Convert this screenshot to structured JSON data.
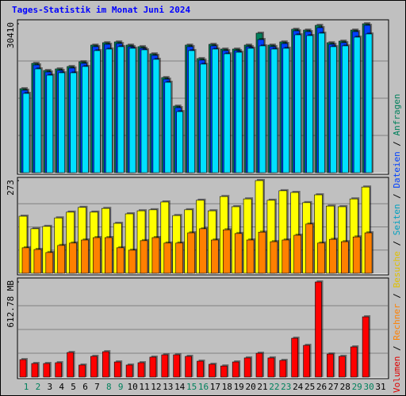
{
  "title": "Tages-Statistik im Monat Juni 2024",
  "legend_separator": " / ",
  "chart_data": [
    {
      "type": "bar",
      "ylim": [
        0,
        30410
      ],
      "yticks": [
        30410
      ],
      "grid": true,
      "series": [
        {
          "name": "Anfragen",
          "color": "#00805c",
          "values": [
            17150,
            22330,
            20870,
            21190,
            21680,
            22650,
            26050,
            26540,
            26700,
            26050,
            25730,
            24270,
            19420,
            13590,
            26050,
            23300,
            26210,
            25240,
            25240,
            26050,
            28480,
            26050,
            26700,
            29290,
            29120,
            30090,
            26540,
            26860,
            29120,
            30410,
            null
          ]
        },
        {
          "name": "Dateien",
          "color": "#0040ff",
          "values": [
            16830,
            22000,
            20550,
            20870,
            21360,
            22330,
            25730,
            26210,
            26370,
            25730,
            25400,
            23950,
            19090,
            13270,
            25730,
            22980,
            25890,
            24920,
            24920,
            25730,
            27180,
            25730,
            26370,
            28960,
            28800,
            29610,
            26210,
            26540,
            28800,
            30090,
            null
          ]
        },
        {
          "name": "Seiten",
          "color": "#00e0ff",
          "values": [
            16180,
            21190,
            19900,
            20390,
            20390,
            21680,
            24920,
            25240,
            25730,
            25400,
            25080,
            23140,
            18450,
            12460,
            24920,
            22170,
            25240,
            24270,
            24590,
            25400,
            25890,
            25240,
            25400,
            28150,
            27990,
            28480,
            25730,
            25890,
            27670,
            28320,
            null
          ]
        }
      ]
    },
    {
      "type": "bar",
      "ylim": [
        0,
        273
      ],
      "yticks": [
        273
      ],
      "grid": true,
      "series": [
        {
          "name": "Besuche",
          "color": "#ffff00",
          "values": [
            168,
            131,
            138,
            163,
            180,
            194,
            180,
            191,
            147,
            175,
            184,
            187,
            210,
            170,
            187,
            215,
            184,
            226,
            196,
            219,
            273,
            215,
            243,
            238,
            208,
            231,
            198,
            196,
            219,
            254,
            null
          ]
        },
        {
          "name": "Rechner",
          "color": "#ff8000",
          "values": [
            75,
            70,
            61,
            82,
            89,
            98,
            105,
            105,
            75,
            68,
            96,
            105,
            89,
            89,
            119,
            131,
            98,
            128,
            117,
            98,
            121,
            93,
            98,
            112,
            145,
            89,
            100,
            93,
            107,
            119,
            null
          ]
        }
      ]
    },
    {
      "type": "bar",
      "ylim": [
        0,
        612.78
      ],
      "yticks": [
        {
          "value": 612.78,
          "label": "612.78 MB"
        }
      ],
      "grid": true,
      "categories": [
        "1",
        "2",
        "3",
        "4",
        "5",
        "6",
        "7",
        "8",
        "9",
        "10",
        "11",
        "12",
        "13",
        "14",
        "15",
        "16",
        "17",
        "18",
        "19",
        "20",
        "21",
        "22",
        "23",
        "24",
        "25",
        "26",
        "27",
        "28",
        "29",
        "30",
        "31"
      ],
      "category_colors": [
        "#00805c",
        "#00805c",
        "#000000",
        "#000000",
        "#000000",
        "#000000",
        "#000000",
        "#00805c",
        "#00805c",
        "#000000",
        "#000000",
        "#000000",
        "#000000",
        "#000000",
        "#00805c",
        "#00805c",
        "#000000",
        "#000000",
        "#000000",
        "#000000",
        "#000000",
        "#00805c",
        "#00805c",
        "#000000",
        "#000000",
        "#000000",
        "#000000",
        "#000000",
        "#00805c",
        "#00805c",
        "#000000"
      ],
      "series": [
        {
          "name": "Volumen",
          "color": "#ff0000",
          "values": [
            112,
            87,
            87,
            92,
            158,
            77,
            133,
            163,
            97,
            77,
            92,
            128,
            143,
            143,
            133,
            102,
            82,
            71,
            97,
            123,
            153,
            123,
            107,
            250,
            204,
            612.78,
            148,
            133,
            194,
            388,
            null
          ]
        }
      ]
    }
  ]
}
